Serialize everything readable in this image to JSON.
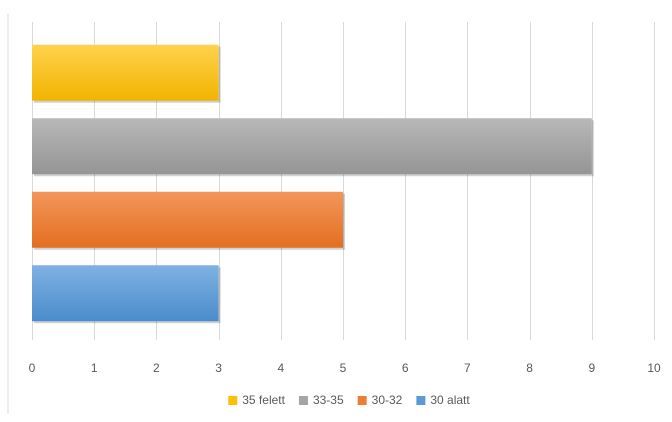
{
  "chart_data": {
    "type": "bar",
    "orientation": "horizontal",
    "title": "",
    "xlabel": "",
    "ylabel": "",
    "xlim": [
      0,
      10
    ],
    "x_ticks": [
      0,
      1,
      2,
      3,
      4,
      5,
      6,
      7,
      8,
      9,
      10
    ],
    "grid": "vertical",
    "legend_position": "bottom",
    "series": [
      {
        "name": "30 alatt",
        "value": 3,
        "color": "#5b9bd5"
      },
      {
        "name": "30-32",
        "value": 5,
        "color": "#ed7d31"
      },
      {
        "name": "33-35",
        "value": 9,
        "color": "#a5a5a5"
      },
      {
        "name": "35 felett",
        "value": 3,
        "color": "#ffc000"
      }
    ],
    "legend_order": [
      "35 felett",
      "33-35",
      "30-32",
      "30 alatt"
    ]
  }
}
